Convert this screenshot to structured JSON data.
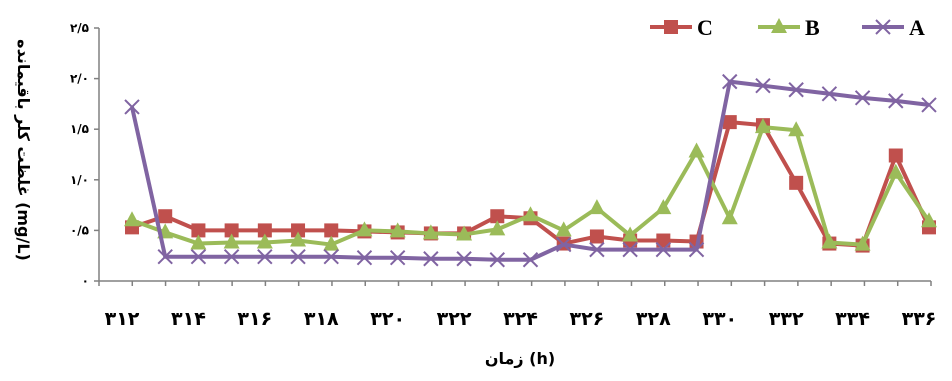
{
  "chart_data": {
    "type": "line",
    "xlabel": "زمان (h)",
    "ylabel": "غلظت کلر باقیمانده (mg/L)",
    "x": [
      312,
      313,
      314,
      315,
      316,
      317,
      318,
      319,
      320,
      321,
      322,
      323,
      324,
      325,
      326,
      327,
      328,
      329,
      330,
      331,
      332,
      333,
      334,
      335,
      336
    ],
    "x_ticks": [
      312,
      314,
      316,
      318,
      320,
      322,
      324,
      326,
      328,
      330,
      332,
      334,
      336
    ],
    "x_tick_labels": [
      "۳۱۲",
      "۳۱۴",
      "۳۱۶",
      "۳۱۸",
      "۳۲۰",
      "۳۲۲",
      "۳۲۴",
      "۳۲۶",
      "۳۲۸",
      "۳۳۰",
      "۳۳۲",
      "۳۳۴",
      "۳۳۶"
    ],
    "ylim": [
      0,
      2.5
    ],
    "y_ticks": [
      0,
      0.5,
      1.0,
      1.5,
      2.0,
      2.5
    ],
    "y_tick_labels": [
      "۰",
      "۰/۵",
      "۱/۰",
      "۱/۵",
      "۲/۰",
      "۲/۵"
    ],
    "grid": false,
    "legend_position": "top-right",
    "series": [
      {
        "name": "C",
        "color": "#c0504d",
        "marker": "square",
        "values": [
          0.53,
          0.64,
          0.5,
          0.5,
          0.5,
          0.5,
          0.5,
          0.49,
          0.48,
          0.47,
          0.47,
          0.64,
          0.62,
          0.37,
          0.44,
          0.4,
          0.4,
          0.39,
          1.57,
          1.54,
          0.97,
          0.37,
          0.35,
          1.24,
          0.53
        ]
      },
      {
        "name": "B",
        "color": "#9bbb59",
        "marker": "triangle",
        "values": [
          0.6,
          0.48,
          0.37,
          0.38,
          0.38,
          0.4,
          0.36,
          0.5,
          0.49,
          0.47,
          0.46,
          0.51,
          0.65,
          0.5,
          0.72,
          0.45,
          0.72,
          1.28,
          0.62,
          1.52,
          1.49,
          0.38,
          0.36,
          1.07,
          0.59
        ]
      },
      {
        "name": "A",
        "color": "#8064a2",
        "marker": "x",
        "values": [
          1.72,
          0.24,
          0.24,
          0.24,
          0.24,
          0.24,
          0.24,
          0.23,
          0.23,
          0.22,
          0.22,
          0.21,
          0.21,
          0.36,
          0.31,
          0.31,
          0.31,
          0.31,
          1.97,
          1.93,
          1.89,
          1.85,
          1.81,
          1.78,
          1.74
        ]
      }
    ]
  }
}
